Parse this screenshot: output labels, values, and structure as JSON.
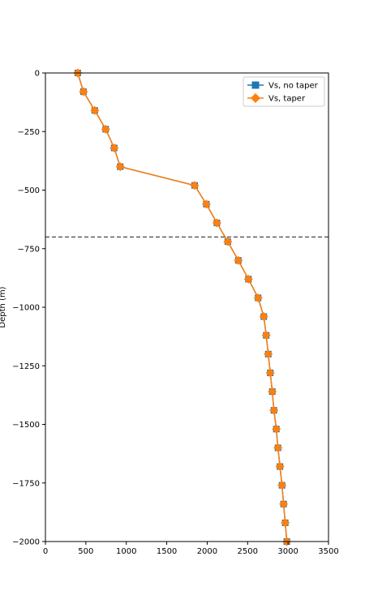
{
  "chart_data": {
    "type": "line",
    "xlabel": "",
    "ylabel": "Depth (m)",
    "xlim": [
      0,
      3500
    ],
    "ylim": [
      -2000,
      0
    ],
    "x_ticks": [
      "0",
      "500",
      "1000",
      "1500",
      "2000",
      "2500",
      "3000",
      "3500"
    ],
    "y_ticks": [
      "0",
      "−250",
      "−500",
      "−750",
      "−1000",
      "−1250",
      "−1500",
      "−1750",
      "−2000"
    ],
    "grid": false,
    "legend_position": "top-right",
    "reference_line": {
      "y": -700,
      "style": "dashed",
      "color": "#333333"
    },
    "series": [
      {
        "name": "Vs, no taper",
        "marker": "square",
        "color": "#1f77b4",
        "points": [
          [
            400,
            0
          ],
          [
            470,
            -80
          ],
          [
            610,
            -160
          ],
          [
            745,
            -240
          ],
          [
            850,
            -320
          ],
          [
            925,
            -400
          ],
          [
            1845,
            -480
          ],
          [
            1990,
            -560
          ],
          [
            2120,
            -640
          ],
          [
            2255,
            -720
          ],
          [
            2385,
            -800
          ],
          [
            2510,
            -880
          ],
          [
            2630,
            -960
          ],
          [
            2700,
            -1040
          ],
          [
            2730,
            -1120
          ],
          [
            2755,
            -1200
          ],
          [
            2780,
            -1280
          ],
          [
            2805,
            -1360
          ],
          [
            2825,
            -1440
          ],
          [
            2855,
            -1520
          ],
          [
            2875,
            -1600
          ],
          [
            2900,
            -1680
          ],
          [
            2925,
            -1760
          ],
          [
            2945,
            -1840
          ],
          [
            2965,
            -1920
          ],
          [
            2985,
            -2000
          ]
        ]
      },
      {
        "name": "Vs, taper",
        "marker": "diamond",
        "color": "#ff7f0e",
        "points": [
          [
            400,
            0
          ],
          [
            470,
            -80
          ],
          [
            610,
            -160
          ],
          [
            745,
            -240
          ],
          [
            850,
            -320
          ],
          [
            925,
            -400
          ],
          [
            1845,
            -480
          ],
          [
            1990,
            -560
          ],
          [
            2120,
            -640
          ],
          [
            2255,
            -720
          ],
          [
            2385,
            -800
          ],
          [
            2510,
            -880
          ],
          [
            2630,
            -960
          ],
          [
            2700,
            -1040
          ],
          [
            2730,
            -1120
          ],
          [
            2755,
            -1200
          ],
          [
            2780,
            -1280
          ],
          [
            2805,
            -1360
          ],
          [
            2825,
            -1440
          ],
          [
            2855,
            -1520
          ],
          [
            2875,
            -1600
          ],
          [
            2900,
            -1680
          ],
          [
            2925,
            -1760
          ],
          [
            2945,
            -1840
          ],
          [
            2965,
            -1920
          ],
          [
            2985,
            -2000
          ]
        ]
      }
    ]
  }
}
